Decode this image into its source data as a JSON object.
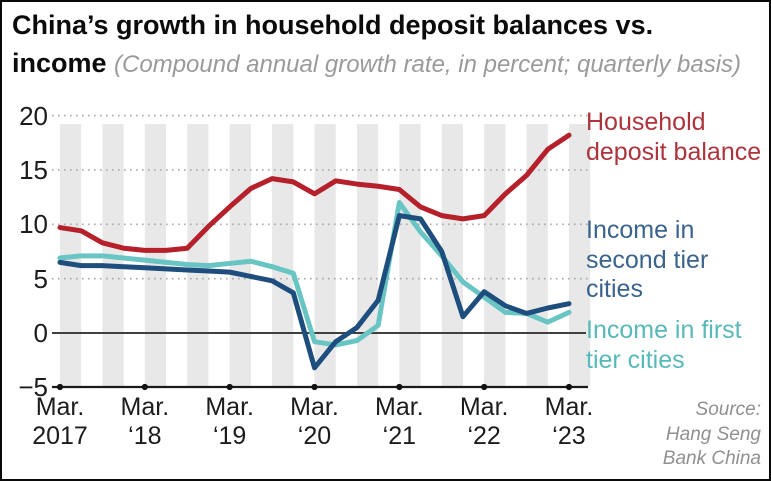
{
  "title": {
    "line1": "China’s growth in household deposit balances vs.",
    "line2": "income",
    "subtitle": "(Compound annual growth rate, in percent; quarterly basis)"
  },
  "source": {
    "line1": "Source:",
    "line2": "Hang Seng",
    "line3": "Bank China"
  },
  "legend": {
    "deposit": {
      "label": "Household deposit balance",
      "color": "#ae343b"
    },
    "second_tier": {
      "label": "Income in second tier cities",
      "color": "#3a648c"
    },
    "first_tier": {
      "label": "Income in first tier cities",
      "color": "#57b9b8"
    }
  },
  "chart_data": {
    "type": "line",
    "title": "China’s growth in household deposit balances vs. income",
    "unit": "percent (compound annual growth rate, quarterly basis)",
    "x": [
      "Mar 2017",
      "Jun 2017",
      "Sep 2017",
      "Dec 2017",
      "Mar 2018",
      "Jun 2018",
      "Sep 2018",
      "Dec 2018",
      "Mar 2019",
      "Jun 2019",
      "Sep 2019",
      "Dec 2019",
      "Mar 2020",
      "Jun 2020",
      "Sep 2020",
      "Dec 2020",
      "Mar 2021",
      "Jun 2021",
      "Sep 2021",
      "Dec 2021",
      "Mar 2022",
      "Jun 2022",
      "Sep 2022",
      "Dec 2022",
      "Mar 2023"
    ],
    "series": [
      {
        "name": "Household deposit balance",
        "color": "#b5202a",
        "values": [
          9.7,
          9.4,
          8.3,
          7.8,
          7.6,
          7.6,
          7.8,
          9.8,
          11.6,
          13.3,
          14.2,
          13.9,
          12.8,
          14.0,
          13.7,
          13.5,
          13.2,
          11.6,
          10.8,
          10.5,
          10.8,
          12.8,
          14.5,
          16.9,
          18.2
        ]
      },
      {
        "name": "Income in second tier cities",
        "color": "#1d4e7e",
        "values": [
          6.5,
          6.2,
          6.2,
          6.1,
          6.0,
          5.9,
          5.8,
          5.7,
          5.6,
          5.2,
          4.8,
          3.7,
          -3.2,
          -0.8,
          0.5,
          3.0,
          10.8,
          10.5,
          7.5,
          1.5,
          3.8,
          2.5,
          1.8,
          2.3,
          2.7
        ]
      },
      {
        "name": "Income in first tier cities",
        "color": "#69c5c3",
        "values": [
          6.9,
          7.1,
          7.1,
          6.9,
          6.7,
          6.5,
          6.3,
          6.2,
          6.4,
          6.6,
          6.1,
          5.5,
          -0.8,
          -1.1,
          -0.7,
          0.7,
          12.0,
          9.3,
          7.1,
          4.7,
          3.3,
          1.9,
          1.8,
          1.0,
          1.9
        ]
      }
    ],
    "ylim": [
      -5,
      20
    ],
    "y_gridlines": [
      5,
      10,
      15,
      20
    ],
    "zero_line": true,
    "grid": "dotted horizontal + alternating quarterly background stripes",
    "legend_position": "right",
    "y_ticks": [
      {
        "label": "20",
        "value": 20
      },
      {
        "label": "15",
        "value": 15
      },
      {
        "label": "10",
        "value": 10
      },
      {
        "label": "5",
        "value": 5
      },
      {
        "label": "0",
        "value": 0
      },
      {
        "label": "−5",
        "value": -5
      }
    ],
    "x_ticks": [
      {
        "quarter": 0,
        "line1": "Mar.",
        "line2": "2017"
      },
      {
        "quarter": 4,
        "line1": "Mar.",
        "line2": "‘18"
      },
      {
        "quarter": 8,
        "line1": "Mar.",
        "line2": "‘19"
      },
      {
        "quarter": 12,
        "line1": "Mar.",
        "line2": "‘20"
      },
      {
        "quarter": 16,
        "line1": "Mar.",
        "line2": "‘21"
      },
      {
        "quarter": 20,
        "line1": "Mar.",
        "line2": "‘22"
      },
      {
        "quarter": 24,
        "line1": "Mar.",
        "line2": "‘23"
      }
    ]
  },
  "colors": {
    "stripe": "#e8e8e8",
    "gridline": "#a9a9a9",
    "zero_line": "#404040",
    "axis": "#1a1a1a",
    "tick_dot": "#111111"
  }
}
